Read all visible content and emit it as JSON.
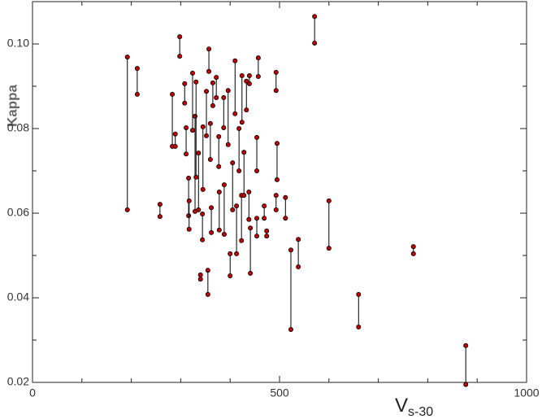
{
  "chart_data": {
    "type": "dumbbell",
    "ylabel": "Kappa",
    "xlabel": {
      "main": "V",
      "sub": "s-30"
    },
    "x": [
      192,
      212,
      258,
      283,
      289,
      298,
      308,
      311,
      316,
      324,
      317,
      329,
      331,
      336,
      340,
      345,
      344,
      352,
      357,
      355,
      360,
      365,
      362,
      372,
      377,
      378,
      387,
      388,
      396,
      400,
      405,
      410,
      413,
      418,
      424,
      423,
      428,
      433,
      438,
      439,
      441,
      454,
      454,
      457,
      469,
      474,
      493,
      495,
      493,
      512,
      523,
      538,
      571,
      600,
      660,
      771,
      877
    ],
    "y_high": [
      0.0969,
      0.0942,
      0.0621,
      0.0881,
      0.0787,
      0.1017,
      0.0906,
      0.0802,
      0.0683,
      0.0931,
      0.0629,
      0.0829,
      0.091,
      0.0742,
      0.0454,
      0.0804,
      0.0598,
      0.0888,
      0.0988,
      0.0465,
      0.0812,
      0.0908,
      0.0613,
      0.0921,
      0.0781,
      0.065,
      0.0873,
      0.0667,
      0.089,
      0.0504,
      0.0719,
      0.096,
      0.0617,
      0.08,
      0.0925,
      0.0642,
      0.0744,
      0.0912,
      0.065,
      0.0925,
      0.0565,
      0.0779,
      0.0588,
      0.0967,
      0.0617,
      0.0558,
      0.0933,
      0.0765,
      0.0642,
      0.0637,
      0.0513,
      0.0538,
      0.1065,
      0.0629,
      0.0408,
      0.0521,
      0.0287
    ],
    "y_low": [
      0.0608,
      0.0881,
      0.0592,
      0.0758,
      0.0758,
      0.0971,
      0.086,
      0.074,
      0.0594,
      0.0796,
      0.0562,
      0.0604,
      0.0685,
      0.0608,
      0.0444,
      0.0656,
      0.0537,
      0.0783,
      0.0935,
      0.0408,
      0.0727,
      0.0854,
      0.0554,
      0.0873,
      0.071,
      0.056,
      0.0802,
      0.055,
      0.0762,
      0.0452,
      0.0608,
      0.0835,
      0.0504,
      0.07,
      0.0815,
      0.0535,
      0.0642,
      0.0844,
      0.0585,
      0.0906,
      0.0458,
      0.07,
      0.0546,
      0.0923,
      0.0588,
      0.0546,
      0.089,
      0.0679,
      0.0608,
      0.0588,
      0.0325,
      0.0473,
      0.1002,
      0.0517,
      0.0331,
      0.0504,
      0.0195
    ],
    "point_color": "#c00000",
    "line_color": "#000000",
    "xlim": [
      0,
      1000
    ],
    "xticks": [
      0,
      500,
      1000
    ],
    "xminorticks": [
      100,
      200,
      300,
      400,
      600,
      700,
      800,
      900
    ],
    "ylim": [
      0.02,
      0.11
    ],
    "yticks": [
      0.02,
      0.04,
      0.06,
      0.08,
      {
        "value": 0.1,
        "label": "0.10"
      }
    ],
    "yminorticks": [
      0.03,
      0.05,
      0.07,
      0.09
    ]
  }
}
